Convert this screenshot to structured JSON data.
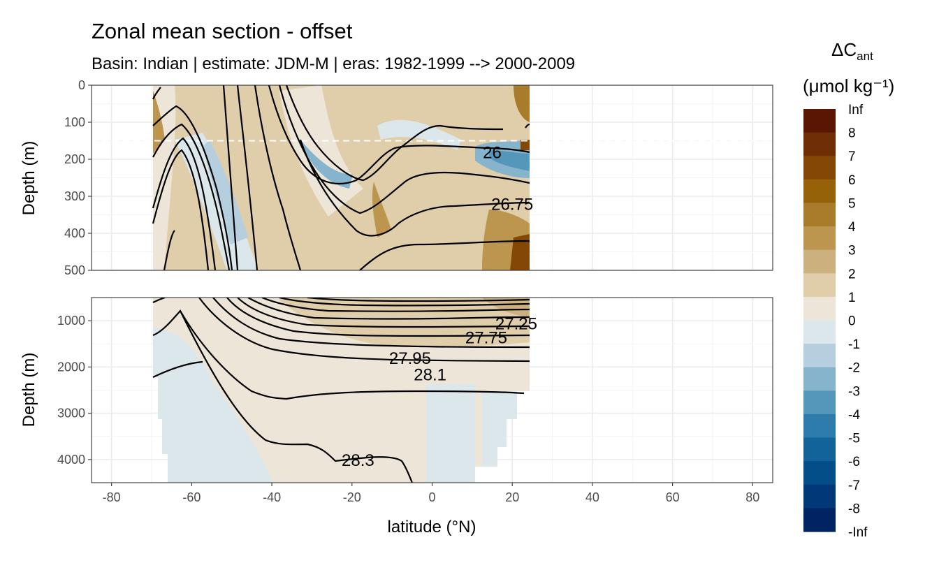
{
  "chart_data": {
    "type": "contour-section",
    "title": "Zonal mean section - offset",
    "subtitle": "Basin: Indian | estimate: JDM-M | eras: 1982-1999 --> 2000-2009",
    "xlabel": "latitude (°N)",
    "ylabel_top": "Depth (m)",
    "ylabel_bottom": "Depth (m)",
    "xlim": [
      -85,
      85
    ],
    "x_ticks": [
      -80,
      -60,
      -40,
      -20,
      0,
      20,
      40,
      60,
      80
    ],
    "x_tick_labels": [
      "-80",
      "-60",
      "-40",
      "-20",
      "0",
      "20",
      "40",
      "60",
      "80"
    ],
    "data_lat_range": [
      -70,
      25
    ],
    "panels": [
      {
        "name": "upper",
        "ylim": [
          0,
          500
        ],
        "y_ticks": [
          0,
          100,
          200,
          300,
          400,
          500
        ],
        "y_tick_labels": [
          "0",
          "100",
          "200",
          "300",
          "400",
          "500"
        ],
        "reference_depth_line": 150
      },
      {
        "name": "lower",
        "ylim": [
          500,
          4500
        ],
        "y_ticks": [
          1000,
          2000,
          3000,
          4000
        ],
        "y_tick_labels": [
          "1000",
          "2000",
          "3000",
          "4000"
        ]
      }
    ],
    "isopycnal_labels": [
      {
        "text": "26",
        "lat": 15,
        "depth": 180
      },
      {
        "text": "26.75",
        "lat": 20,
        "depth": 320
      },
      {
        "text": "27.25",
        "lat": 21,
        "depth": 1050
      },
      {
        "text": "27.75",
        "lat": 13.5,
        "depth": 1350
      },
      {
        "text": "27.95",
        "lat": -5.5,
        "depth": 1800
      },
      {
        "text": "28.1",
        "lat": -0.5,
        "depth": 2150
      },
      {
        "text": "28.3",
        "lat": -18.5,
        "depth": 4000
      }
    ],
    "legend": {
      "title_main": "ΔC",
      "title_sub": "ant",
      "unit_line": "(μmol kg⁻¹)",
      "breaks": [
        "Inf",
        "8",
        "7",
        "6",
        "5",
        "4",
        "3",
        "2",
        "1",
        "0",
        "-1",
        "-2",
        "-3",
        "-4",
        "-5",
        "-6",
        "-7",
        "-8",
        "-Inf"
      ],
      "colors": [
        "#5b1503",
        "#6f2e05",
        "#844706",
        "#966209",
        "#a97c2b",
        "#bc954e",
        "#ccb17e",
        "#dfcea9",
        "#ede6d8",
        "#dce7ec",
        "#b5cfde",
        "#87b4cd",
        "#5596bb",
        "#2d7cab",
        "#11639a",
        "#034d89",
        "#013878",
        "#002363"
      ]
    }
  }
}
